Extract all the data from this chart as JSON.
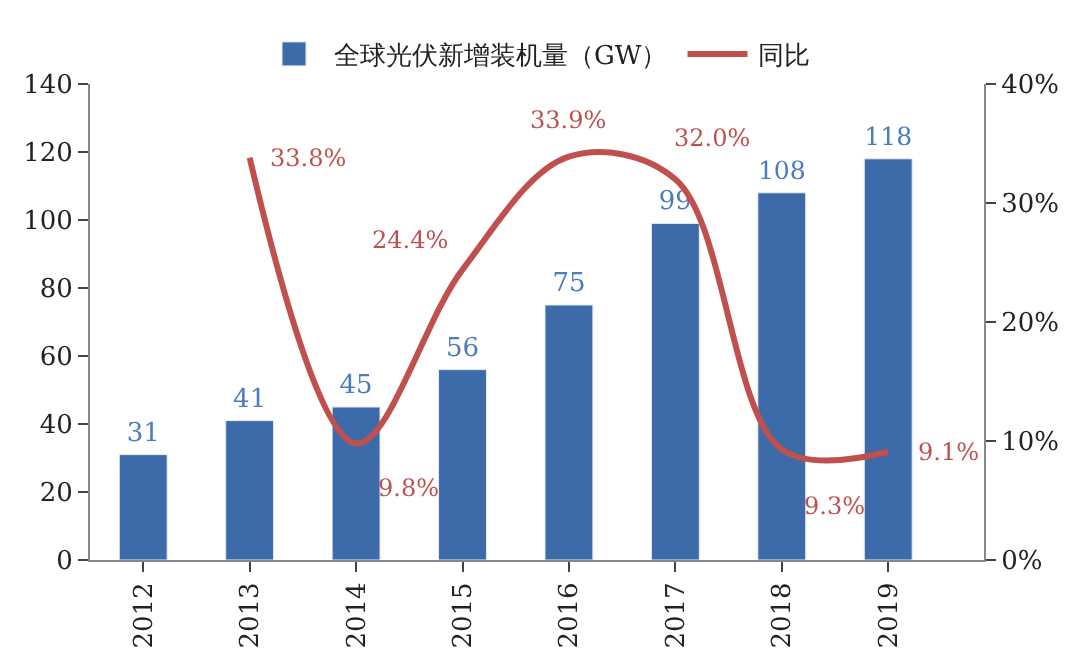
{
  "chart_data": {
    "type": "bar",
    "categories": [
      "2012",
      "2013",
      "2014",
      "2015",
      "2016",
      "2017",
      "2018",
      "2019"
    ],
    "series": [
      {
        "name": "全球光伏新增装机量（GW）",
        "type": "bar",
        "color": "#3d6aa8",
        "values": [
          31,
          41,
          45,
          56,
          75,
          99,
          108,
          118
        ],
        "value_labels": [
          "31",
          "41",
          "45",
          "56",
          "75",
          "99",
          "108",
          "118"
        ]
      },
      {
        "name": "同比",
        "type": "line",
        "axis": "y2",
        "color": "#c0504d",
        "values": [
          null,
          33.8,
          9.8,
          24.4,
          33.9,
          32.0,
          9.3,
          9.1
        ],
        "value_labels": [
          null,
          "33.8%",
          "9.8%",
          "24.4%",
          "33.9%",
          "32.0%",
          "9.3%",
          "9.1%"
        ]
      }
    ],
    "ylim": [
      0,
      140
    ],
    "yticks": [
      0,
      20,
      40,
      60,
      80,
      100,
      120,
      140
    ],
    "y2lim": [
      0,
      40
    ],
    "y2ticks": [
      {
        "value": 0,
        "label": "0%"
      },
      {
        "value": 10,
        "label": "10%"
      },
      {
        "value": 20,
        "label": "20%"
      },
      {
        "value": 30,
        "label": "30%"
      },
      {
        "value": 40,
        "label": "40%"
      }
    ],
    "legend": "top",
    "marker": "none",
    "line_style": "solid"
  }
}
